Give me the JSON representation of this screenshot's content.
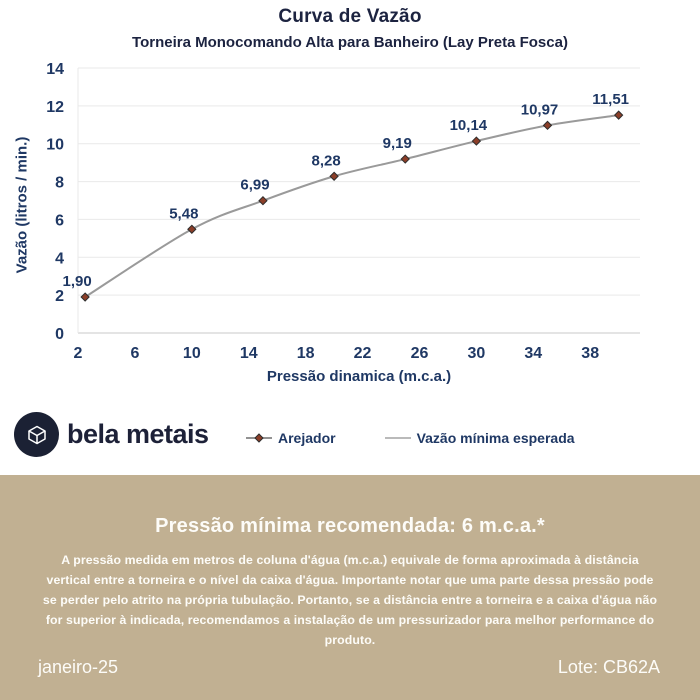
{
  "header": {
    "title": "Curva de Vazão",
    "subtitle": "Torneira Monocomando Alta para Banheiro (Lay Preta Fosca)"
  },
  "chart_data": {
    "type": "line",
    "title": "Curva de Vazão",
    "subtitle": "Torneira Monocomando Alta para Banheiro (Lay Preta Fosca)",
    "xlabel": "Pressão dinamica (m.c.a.)",
    "ylabel": "Vazão (litros / min.)",
    "x_ticks": [
      2,
      6,
      10,
      14,
      18,
      22,
      26,
      30,
      34,
      38
    ],
    "y_ticks": [
      0,
      2,
      4,
      6,
      8,
      10,
      12,
      14
    ],
    "xlim": [
      2,
      41.5
    ],
    "ylim": [
      0,
      14
    ],
    "grid": "horizontal",
    "legend_position": "bottom",
    "series": [
      {
        "name": "Arejador",
        "x": [
          2.5,
          10,
          15,
          20,
          25,
          30,
          35,
          40
        ],
        "y": [
          1.9,
          5.48,
          6.99,
          8.28,
          9.19,
          10.14,
          10.97,
          11.51
        ],
        "labels": [
          "1,90",
          "5,48",
          "6,99",
          "8,28",
          "9,19",
          "10,14",
          "10,97",
          "11,51"
        ],
        "line_color": "#9a9a9a",
        "marker": "diamond",
        "marker_color": "#8B3E28",
        "marker_stroke": "#2d2d2d"
      },
      {
        "name": "Vazão mínima esperada",
        "line_color": "#b0b0b0"
      }
    ]
  },
  "brand": {
    "name": "bela metais"
  },
  "info_box": {
    "heading": "Pressão mínima recomendada: 6 m.c.a.*",
    "body": "A pressão medida em metros de coluna d'água (m.c.a.) equivale de forma aproximada à distância vertical entre a torneira e o nível da caixa d'água. Importante notar que uma parte dessa pressão pode se perder pelo atrito na própria tubulação. Portanto, se a distância entre a torneira e a caixa d'água não for superior à indicada, recomendamos a instalação de um pressurizador para melhor performance do produto.",
    "date": "janeiro-25",
    "lot": "Lote: CB62A"
  },
  "colors": {
    "navy_text": "#1F3864",
    "title_text": "#1c2340",
    "gridline": "#e9e9e9",
    "axis_line": "#c8c8c8",
    "beige_background": "#c1b092",
    "info_text": "#fdfcf8",
    "logo_background": "#1b2134"
  }
}
